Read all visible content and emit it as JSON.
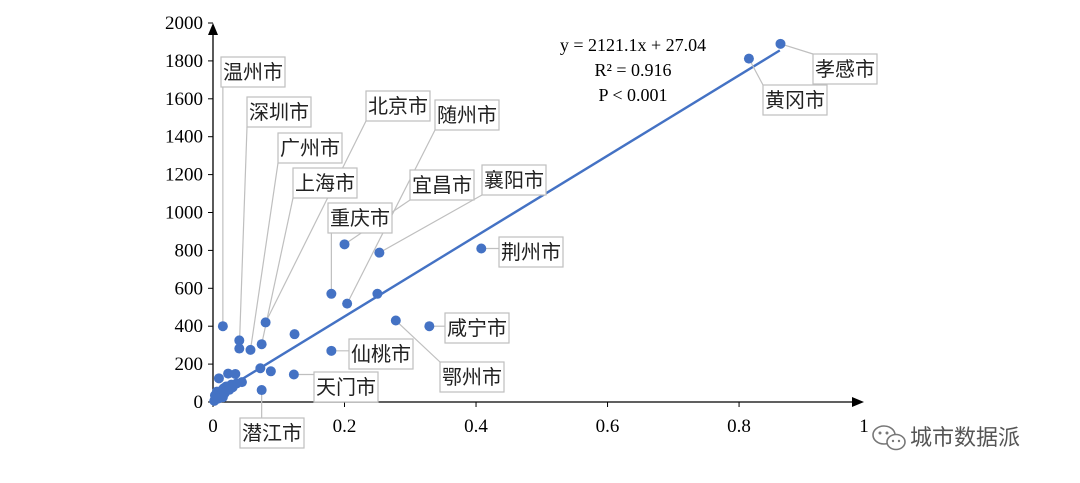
{
  "chart_data": {
    "type": "scatter",
    "title": "",
    "xlabel": "",
    "ylabel": "",
    "xlim": [
      0,
      0.99
    ],
    "ylim": [
      0,
      2000
    ],
    "x_ticks": [
      0,
      0.2,
      0.4,
      0.6,
      0.8
    ],
    "x_tick_labels": [
      "0",
      "0.2",
      "0.4",
      "0.6",
      "0.8"
    ],
    "x_tick_end_label": "1",
    "y_ticks": [
      0,
      200,
      400,
      600,
      800,
      1000,
      1200,
      1400,
      1600,
      1800,
      2000
    ],
    "y_tick_labels": [
      "0",
      "200",
      "400",
      "600",
      "800",
      "1000",
      "1200",
      "1400",
      "1600",
      "1800",
      "2000"
    ],
    "grid": false,
    "point_color": "#4472c4",
    "trendline": {
      "slope": 2121.1,
      "intercept": 27.04,
      "x_range": [
        0,
        0.862
      ],
      "color": "#4472c4"
    },
    "annotation": [
      "y = 2121.1x + 27.04",
      "R² = 0.916",
      "P < 0.001"
    ],
    "points": [
      {
        "x": 0.863,
        "y": 1890,
        "label": "孝感市"
      },
      {
        "x": 0.815,
        "y": 1812,
        "label": "黄冈市"
      },
      {
        "x": 0.408,
        "y": 810,
        "label": "荆州市"
      },
      {
        "x": 0.253,
        "y": 788,
        "label": "襄阳市"
      },
      {
        "x": 0.2,
        "y": 832,
        "label": "宜昌市"
      },
      {
        "x": 0.18,
        "y": 571,
        "label": "重庆市"
      },
      {
        "x": 0.25,
        "y": 571,
        "label": ""
      },
      {
        "x": 0.204,
        "y": 519,
        "label": "随州市"
      },
      {
        "x": 0.329,
        "y": 400,
        "label": "咸宁市"
      },
      {
        "x": 0.278,
        "y": 430,
        "label": "鄂州市"
      },
      {
        "x": 0.18,
        "y": 270,
        "label": "仙桃市"
      },
      {
        "x": 0.124,
        "y": 358,
        "label": ""
      },
      {
        "x": 0.123,
        "y": 145,
        "label": "天门市"
      },
      {
        "x": 0.074,
        "y": 63,
        "label": "潜江市"
      },
      {
        "x": 0.08,
        "y": 420,
        "label": "北京市"
      },
      {
        "x": 0.074,
        "y": 305,
        "label": "上海市"
      },
      {
        "x": 0.057,
        "y": 275,
        "label": "广州市"
      },
      {
        "x": 0.04,
        "y": 282,
        "label": "深圳市"
      },
      {
        "x": 0.04,
        "y": 325,
        "label": ""
      },
      {
        "x": 0.015,
        "y": 400,
        "label": "温州市"
      },
      {
        "x": 0.072,
        "y": 178,
        "label": ""
      },
      {
        "x": 0.088,
        "y": 162,
        "label": ""
      },
      {
        "x": 0.023,
        "y": 150,
        "label": ""
      },
      {
        "x": 0.034,
        "y": 148,
        "label": ""
      },
      {
        "x": 0.009,
        "y": 125,
        "label": ""
      },
      {
        "x": 0.044,
        "y": 105,
        "label": ""
      },
      {
        "x": 0.036,
        "y": 98,
        "label": ""
      },
      {
        "x": 0.028,
        "y": 92,
        "label": ""
      },
      {
        "x": 0.02,
        "y": 82,
        "label": ""
      },
      {
        "x": 0.016,
        "y": 72,
        "label": ""
      },
      {
        "x": 0.013,
        "y": 60,
        "label": ""
      },
      {
        "x": 0.01,
        "y": 50,
        "label": ""
      },
      {
        "x": 0.007,
        "y": 40,
        "label": ""
      },
      {
        "x": 0.005,
        "y": 30,
        "label": ""
      },
      {
        "x": 0.004,
        "y": 20,
        "label": ""
      },
      {
        "x": 0.003,
        "y": 12,
        "label": ""
      },
      {
        "x": 0.002,
        "y": 6,
        "label": ""
      },
      {
        "x": 0.003,
        "y": 35,
        "label": ""
      },
      {
        "x": 0.006,
        "y": 55,
        "label": ""
      },
      {
        "x": 0.012,
        "y": 38,
        "label": ""
      },
      {
        "x": 0.018,
        "y": 48,
        "label": ""
      },
      {
        "x": 0.025,
        "y": 65,
        "label": ""
      },
      {
        "x": 0.03,
        "y": 78,
        "label": ""
      },
      {
        "x": 0.008,
        "y": 18,
        "label": ""
      },
      {
        "x": 0.015,
        "y": 25,
        "label": ""
      }
    ]
  },
  "watermark": {
    "text": "城市数据派",
    "icon": "wechat-icon"
  }
}
